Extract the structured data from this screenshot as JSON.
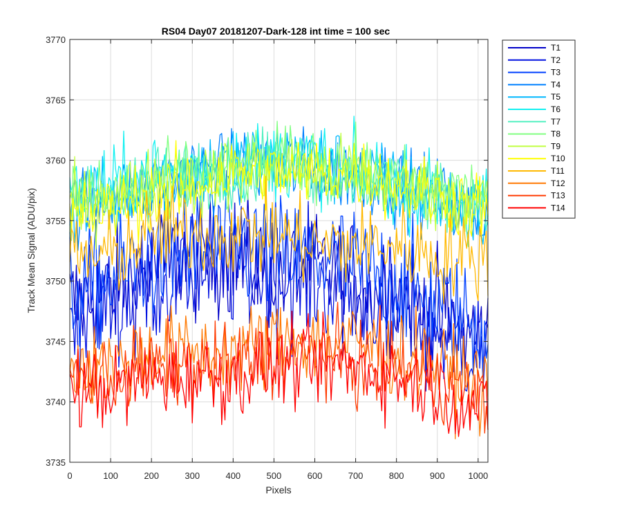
{
  "chart_data": {
    "type": "line",
    "title": "RS04 Day07 20181207-Dark-128 int time = 100 sec",
    "xlabel": "Pixels",
    "ylabel": "Track Mean Signal (ADU/pix)",
    "xlim": [
      0,
      1024
    ],
    "ylim": [
      3735,
      3770
    ],
    "xticks": [
      0,
      100,
      200,
      300,
      400,
      500,
      600,
      700,
      800,
      900,
      1000
    ],
    "yticks": [
      3735,
      3740,
      3745,
      3750,
      3755,
      3760,
      3765,
      3770
    ],
    "grid": true,
    "legend_position": "outside-top-right",
    "x_step": 4,
    "series": [
      {
        "name": "T1",
        "color": "#0000c8",
        "noise": 2.6,
        "profile": [
          [
            0,
            3748
          ],
          [
            100,
            3749
          ],
          [
            200,
            3751
          ],
          [
            300,
            3752
          ],
          [
            400,
            3752
          ],
          [
            500,
            3751
          ],
          [
            600,
            3751
          ],
          [
            700,
            3750
          ],
          [
            800,
            3749
          ],
          [
            900,
            3747
          ],
          [
            1024,
            3745
          ]
        ]
      },
      {
        "name": "T2",
        "color": "#0010e0",
        "noise": 2.6,
        "profile": [
          [
            0,
            3747
          ],
          [
            100,
            3748
          ],
          [
            200,
            3750
          ],
          [
            300,
            3751
          ],
          [
            400,
            3751
          ],
          [
            500,
            3750
          ],
          [
            600,
            3750
          ],
          [
            700,
            3749
          ],
          [
            800,
            3748
          ],
          [
            900,
            3746
          ],
          [
            1024,
            3744
          ]
        ]
      },
      {
        "name": "T3",
        "color": "#0040ff",
        "noise": 2.6,
        "profile": [
          [
            0,
            3749
          ],
          [
            100,
            3750
          ],
          [
            200,
            3752
          ],
          [
            300,
            3752
          ],
          [
            400,
            3753
          ],
          [
            500,
            3752
          ],
          [
            600,
            3752
          ],
          [
            700,
            3751
          ],
          [
            800,
            3750
          ],
          [
            900,
            3748
          ],
          [
            1024,
            3746
          ]
        ]
      },
      {
        "name": "T4",
        "color": "#0080ff",
        "noise": 1.6,
        "profile": [
          [
            0,
            3756
          ],
          [
            100,
            3757
          ],
          [
            200,
            3758
          ],
          [
            300,
            3759
          ],
          [
            400,
            3759
          ],
          [
            500,
            3760
          ],
          [
            600,
            3759
          ],
          [
            700,
            3759
          ],
          [
            800,
            3758
          ],
          [
            900,
            3757
          ],
          [
            1024,
            3755
          ]
        ]
      },
      {
        "name": "T5",
        "color": "#00b8ff",
        "noise": 1.6,
        "profile": [
          [
            0,
            3756
          ],
          [
            100,
            3757
          ],
          [
            200,
            3758
          ],
          [
            300,
            3759
          ],
          [
            400,
            3760
          ],
          [
            500,
            3760
          ],
          [
            600,
            3760
          ],
          [
            700,
            3759
          ],
          [
            800,
            3758
          ],
          [
            900,
            3757
          ],
          [
            1024,
            3755
          ]
        ]
      },
      {
        "name": "T6",
        "color": "#10f0f0",
        "noise": 1.6,
        "profile": [
          [
            0,
            3757
          ],
          [
            100,
            3758
          ],
          [
            200,
            3759
          ],
          [
            300,
            3759
          ],
          [
            400,
            3760
          ],
          [
            500,
            3760
          ],
          [
            600,
            3760
          ],
          [
            700,
            3759
          ],
          [
            800,
            3758
          ],
          [
            900,
            3757
          ],
          [
            1024,
            3756
          ]
        ]
      },
      {
        "name": "T7",
        "color": "#50f0c0",
        "noise": 1.5,
        "profile": [
          [
            0,
            3757
          ],
          [
            100,
            3757
          ],
          [
            200,
            3758
          ],
          [
            300,
            3759
          ],
          [
            400,
            3759
          ],
          [
            500,
            3760
          ],
          [
            600,
            3759
          ],
          [
            700,
            3759
          ],
          [
            800,
            3758
          ],
          [
            900,
            3757
          ],
          [
            1024,
            3756
          ]
        ]
      },
      {
        "name": "T8",
        "color": "#80ff80",
        "noise": 1.5,
        "profile": [
          [
            0,
            3757
          ],
          [
            100,
            3757
          ],
          [
            200,
            3758
          ],
          [
            300,
            3759
          ],
          [
            400,
            3759
          ],
          [
            500,
            3760
          ],
          [
            600,
            3760
          ],
          [
            700,
            3759
          ],
          [
            800,
            3758
          ],
          [
            900,
            3758
          ],
          [
            1024,
            3757
          ]
        ]
      },
      {
        "name": "T9",
        "color": "#c0ff40",
        "noise": 1.5,
        "profile": [
          [
            0,
            3756
          ],
          [
            100,
            3757
          ],
          [
            200,
            3758
          ],
          [
            300,
            3758
          ],
          [
            400,
            3759
          ],
          [
            500,
            3759
          ],
          [
            600,
            3759
          ],
          [
            700,
            3759
          ],
          [
            800,
            3758
          ],
          [
            900,
            3757
          ],
          [
            1024,
            3757
          ]
        ]
      },
      {
        "name": "T10",
        "color": "#ffff00",
        "noise": 1.5,
        "profile": [
          [
            0,
            3755
          ],
          [
            100,
            3756
          ],
          [
            200,
            3757
          ],
          [
            300,
            3758
          ],
          [
            400,
            3759
          ],
          [
            500,
            3759
          ],
          [
            600,
            3759
          ],
          [
            700,
            3759
          ],
          [
            800,
            3758
          ],
          [
            900,
            3757
          ],
          [
            1024,
            3756
          ]
        ]
      },
      {
        "name": "T11",
        "color": "#ffb800",
        "noise": 1.8,
        "profile": [
          [
            0,
            3752
          ],
          [
            100,
            3752
          ],
          [
            200,
            3754
          ],
          [
            300,
            3754
          ],
          [
            400,
            3754
          ],
          [
            500,
            3754
          ],
          [
            600,
            3753
          ],
          [
            700,
            3753
          ],
          [
            800,
            3753
          ],
          [
            900,
            3752
          ],
          [
            1024,
            3752
          ]
        ]
      },
      {
        "name": "T12",
        "color": "#ff7800",
        "noise": 1.8,
        "profile": [
          [
            0,
            3743
          ],
          [
            100,
            3743
          ],
          [
            200,
            3744
          ],
          [
            300,
            3744
          ],
          [
            400,
            3744
          ],
          [
            500,
            3745
          ],
          [
            600,
            3745
          ],
          [
            700,
            3745
          ],
          [
            800,
            3744
          ],
          [
            900,
            3743
          ],
          [
            1024,
            3741
          ]
        ]
      },
      {
        "name": "T13",
        "color": "#ff3a00",
        "noise": 1.7,
        "profile": [
          [
            0,
            3742
          ],
          [
            100,
            3742
          ],
          [
            200,
            3743
          ],
          [
            300,
            3743
          ],
          [
            400,
            3743
          ],
          [
            500,
            3744
          ],
          [
            600,
            3744
          ],
          [
            700,
            3743
          ],
          [
            800,
            3743
          ],
          [
            900,
            3742
          ],
          [
            1024,
            3740
          ]
        ]
      },
      {
        "name": "T14",
        "color": "#ff0000",
        "noise": 1.7,
        "profile": [
          [
            0,
            3741
          ],
          [
            100,
            3741
          ],
          [
            200,
            3742
          ],
          [
            300,
            3742
          ],
          [
            400,
            3742
          ],
          [
            500,
            3743
          ],
          [
            600,
            3743
          ],
          [
            700,
            3743
          ],
          [
            800,
            3742
          ],
          [
            900,
            3741
          ],
          [
            1024,
            3739
          ]
        ]
      }
    ]
  }
}
